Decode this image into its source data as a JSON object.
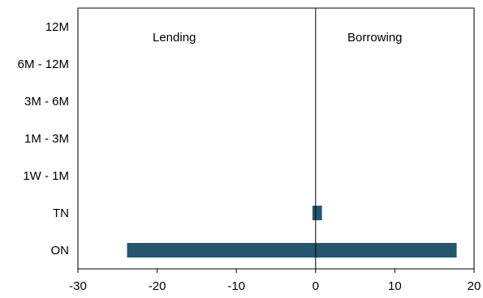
{
  "chart_data": {
    "type": "bar",
    "orientation": "horizontal",
    "categories": [
      "12M",
      "6M - 12M",
      "3M - 6M",
      "1M - 3M",
      "1W - 1M",
      "TN",
      "ON"
    ],
    "series": [
      {
        "values": [
          null,
          null,
          null,
          null,
          null,
          -0.4,
          -23.8
        ]
      },
      {
        "values": [
          null,
          null,
          null,
          null,
          null,
          0.8,
          17.8
        ]
      }
    ],
    "xlim": [
      -30,
      20
    ],
    "xticks": [
      "-30",
      "-20",
      "-10",
      "0",
      "10",
      "20"
    ],
    "annotations": {
      "left": "Lending",
      "right": "Borrowing"
    },
    "bar_color": "#24576f",
    "grid": false
  }
}
